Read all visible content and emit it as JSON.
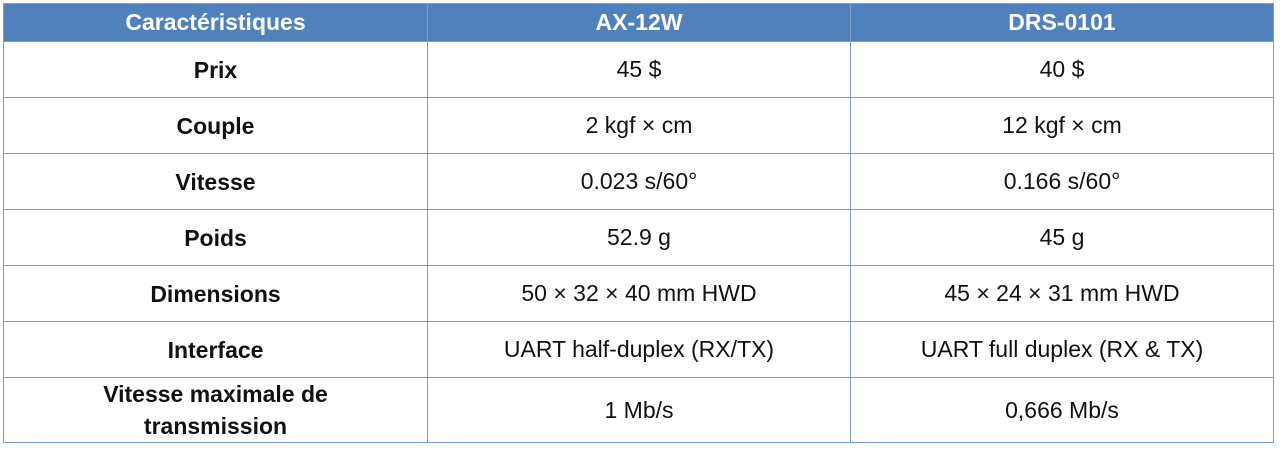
{
  "table": {
    "headers": [
      "Caractéristiques",
      "AX-12W",
      "DRS-0101"
    ],
    "rows": [
      {
        "label": "Prix",
        "ax12w": "45 $",
        "drs0101": "40 $"
      },
      {
        "label": "Couple",
        "ax12w": "2 kgf × cm",
        "drs0101": "12 kgf × cm"
      },
      {
        "label": "Vitesse",
        "ax12w": "0.023 s/60°",
        "drs0101": "0.166 s/60°"
      },
      {
        "label": "Poids",
        "ax12w": "52.9 g",
        "drs0101": "45 g"
      },
      {
        "label": "Dimensions",
        "ax12w": "50 × 32 × 40 mm HWD",
        "drs0101": "45 × 24 × 31 mm HWD"
      },
      {
        "label": "Interface",
        "ax12w": "UART half-duplex (RX/TX)",
        "drs0101": "UART full duplex (RX & TX)"
      },
      {
        "label_line1": "Vitesse maximale de",
        "label_line2": "transmission",
        "ax12w": "1 Mb/s",
        "drs0101": "0,666 Mb/s"
      }
    ]
  },
  "colors": {
    "header_bg": "#4f81bd",
    "header_text": "#ffffff",
    "border": "#7f9cc9"
  }
}
